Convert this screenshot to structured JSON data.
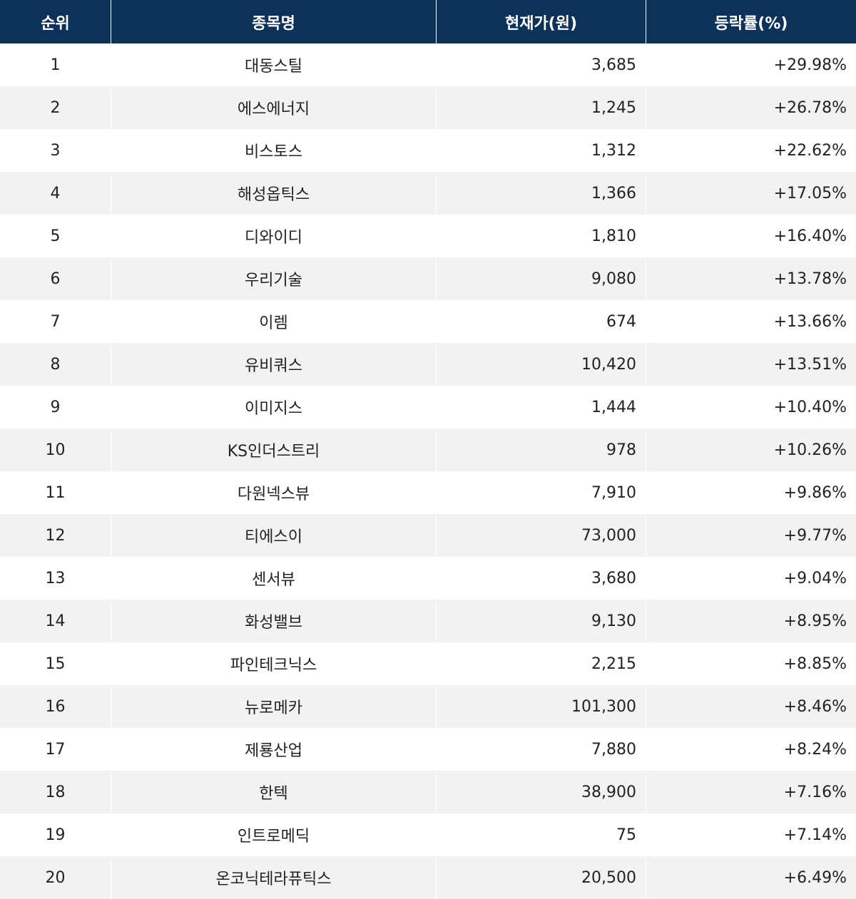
{
  "table": {
    "header": [
      "순위",
      "종목명",
      "현재가(원)",
      "등락률(%)"
    ],
    "rows": [
      [
        "1",
        "대동스틸",
        "3,685",
        "+29.98%"
      ],
      [
        "2",
        "에스에너지",
        "1,245",
        "+26.78%"
      ],
      [
        "3",
        "비스토스",
        "1,312",
        "+22.62%"
      ],
      [
        "4",
        "해성옵틱스",
        "1,366",
        "+17.05%"
      ],
      [
        "5",
        "디와이디",
        "1,810",
        "+16.40%"
      ],
      [
        "6",
        "우리기술",
        "9,080",
        "+13.78%"
      ],
      [
        "7",
        "이렘",
        "674",
        "+13.66%"
      ],
      [
        "8",
        "유비쿼스",
        "10,420",
        "+13.51%"
      ],
      [
        "9",
        "이미지스",
        "1,444",
        "+10.40%"
      ],
      [
        "10",
        "KS인더스트리",
        "978",
        "+10.26%"
      ],
      [
        "11",
        "다원넥스뷰",
        "7,910",
        "+9.86%"
      ],
      [
        "12",
        "티에스이",
        "73,000",
        "+9.77%"
      ],
      [
        "13",
        "센서뷰",
        "3,680",
        "+9.04%"
      ],
      [
        "14",
        "화성밸브",
        "9,130",
        "+8.95%"
      ],
      [
        "15",
        "파인테크닉스",
        "2,215",
        "+8.85%"
      ],
      [
        "16",
        "뉴로메카",
        "101,300",
        "+8.46%"
      ],
      [
        "17",
        "제룡산업",
        "7,880",
        "+8.24%"
      ],
      [
        "18",
        "한텍",
        "38,900",
        "+7.16%"
      ],
      [
        "19",
        "인트로메딕",
        "75",
        "+7.14%"
      ],
      [
        "20",
        "온코닉테라퓨틱스",
        "20,500",
        "+6.49%"
      ]
    ]
  }
}
